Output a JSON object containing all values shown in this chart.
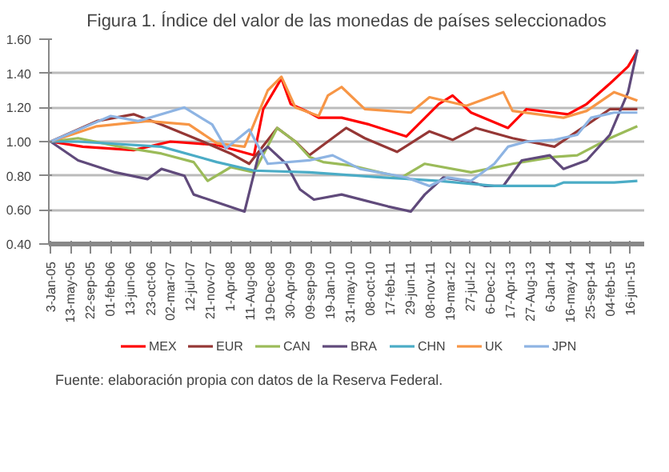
{
  "chart_data": {
    "type": "line",
    "title": "Figura 1. Índice del valor de las monedas de países seleccionados",
    "annotations": [
      "Fuente: elaboración propia con datos de la Reserva Federal."
    ],
    "xlim": [
      "2004-12-20",
      "2015-09-15"
    ],
    "xticks": [
      {
        "value": "2005-01-03",
        "label": "3-Jan-05"
      },
      {
        "value": "2005-05-13",
        "label": "13-may-05"
      },
      {
        "value": "2005-09-22",
        "label": "22-sep-05"
      },
      {
        "value": "2006-02-01",
        "label": "01-feb-06"
      },
      {
        "value": "2006-06-13",
        "label": "13-jun-06"
      },
      {
        "value": "2006-10-23",
        "label": "23-oct-06"
      },
      {
        "value": "2007-03-02",
        "label": "02-mar-07"
      },
      {
        "value": "2007-07-12",
        "label": "12-jul-07"
      },
      {
        "value": "2007-11-21",
        "label": "21-nov-07"
      },
      {
        "value": "2008-04-01",
        "label": "1-Apr-08"
      },
      {
        "value": "2008-08-11",
        "label": "11-Aug-08"
      },
      {
        "value": "2008-12-19",
        "label": "19-Dec-08"
      },
      {
        "value": "2009-04-30",
        "label": "30-Apr-09"
      },
      {
        "value": "2009-09-09",
        "label": "09-sep-09"
      },
      {
        "value": "2010-01-19",
        "label": "19-Jan-10"
      },
      {
        "value": "2010-05-31",
        "label": "31-may-10"
      },
      {
        "value": "2010-10-08",
        "label": "08-oct-10"
      },
      {
        "value": "2011-02-17",
        "label": "17-feb-11"
      },
      {
        "value": "2011-06-29",
        "label": "29-jun-11"
      },
      {
        "value": "2011-11-08",
        "label": "08-nov-11"
      },
      {
        "value": "2012-03-19",
        "label": "19-mar-12"
      },
      {
        "value": "2012-07-27",
        "label": "27-jul-12"
      },
      {
        "value": "2012-12-06",
        "label": "6-Dec-12"
      },
      {
        "value": "2013-04-17",
        "label": "17-Apr-13"
      },
      {
        "value": "2013-08-27",
        "label": "27-Aug-13"
      },
      {
        "value": "2014-01-06",
        "label": "6-Jan-14"
      },
      {
        "value": "2014-05-16",
        "label": "16-may-14"
      },
      {
        "value": "2014-09-25",
        "label": "25-sep-14"
      },
      {
        "value": "2015-02-04",
        "label": "04-feb-15"
      },
      {
        "value": "2015-06-16",
        "label": "16-jun-15"
      }
    ],
    "ylim": [
      0.4,
      1.6
    ],
    "yticks": [
      {
        "value": 0.4,
        "label": "0.40"
      },
      {
        "value": 0.6,
        "label": "0.60"
      },
      {
        "value": 0.8,
        "label": "0.80"
      },
      {
        "value": 1.0,
        "label": "1.00"
      },
      {
        "value": 1.2,
        "label": "1.20"
      },
      {
        "value": 1.4,
        "label": "1.40"
      },
      {
        "value": 1.6,
        "label": "1.60"
      }
    ],
    "grid": "y",
    "legend": "bottom",
    "series": [
      {
        "name": "MEX",
        "color": "#ff0000",
        "x": [
          "2005-01",
          "2005-08",
          "2006-07",
          "2007-03",
          "2008-01",
          "2008-09",
          "2008-11",
          "2009-03",
          "2009-05",
          "2009-09",
          "2009-11",
          "2010-04",
          "2010-10",
          "2011-06",
          "2012-01",
          "2012-04",
          "2012-08",
          "2013-04",
          "2013-08",
          "2014-05",
          "2014-09",
          "2015-02",
          "2015-06",
          "2015-08"
        ],
        "values": [
          1.0,
          0.97,
          0.95,
          1.0,
          0.98,
          0.92,
          1.19,
          1.37,
          1.22,
          1.17,
          1.14,
          1.14,
          1.1,
          1.03,
          1.22,
          1.27,
          1.17,
          1.08,
          1.19,
          1.16,
          1.22,
          1.34,
          1.44,
          1.53
        ]
      },
      {
        "name": "EUR",
        "color": "#953735",
        "x": [
          "2005-01",
          "2005-11",
          "2006-07",
          "2007-01",
          "2007-10",
          "2008-04",
          "2008-08",
          "2009-02",
          "2009-06",
          "2009-09",
          "2010-05",
          "2010-09",
          "2011-04",
          "2011-11",
          "2012-04",
          "2012-09",
          "2013-05",
          "2014-02",
          "2014-07",
          "2015-02",
          "2015-08"
        ],
        "values": [
          1.0,
          1.12,
          1.16,
          1.1,
          1.0,
          0.93,
          0.87,
          1.08,
          1.0,
          0.92,
          1.08,
          1.02,
          0.94,
          1.06,
          1.01,
          1.08,
          1.02,
          0.97,
          1.06,
          1.19,
          1.19
        ]
      },
      {
        "name": "CAN",
        "color": "#9bbb59",
        "x": [
          "2005-01",
          "2005-07",
          "2006-04",
          "2007-01",
          "2007-08",
          "2007-11",
          "2008-04",
          "2008-09",
          "2009-02",
          "2009-06",
          "2009-09",
          "2009-12",
          "2010-06",
          "2011-05",
          "2011-10",
          "2012-08",
          "2013-05",
          "2014-02",
          "2014-07",
          "2015-02",
          "2015-08"
        ],
        "values": [
          1.0,
          1.02,
          0.97,
          0.93,
          0.88,
          0.77,
          0.85,
          0.82,
          1.08,
          1.0,
          0.91,
          0.88,
          0.86,
          0.79,
          0.87,
          0.82,
          0.87,
          0.91,
          0.92,
          1.02,
          1.09
        ]
      },
      {
        "name": "BRA",
        "color": "#604a7b",
        "x": [
          "2005-01",
          "2005-07",
          "2006-03",
          "2006-10",
          "2007-01",
          "2007-06",
          "2007-08",
          "2008-07",
          "2008-10",
          "2008-12",
          "2009-04",
          "2009-07",
          "2009-10",
          "2010-04",
          "2011-02",
          "2011-07",
          "2011-10",
          "2012-02",
          "2012-07",
          "2012-11",
          "2013-03",
          "2013-07",
          "2014-01",
          "2014-04",
          "2014-09",
          "2015-02",
          "2015-06",
          "2015-08"
        ],
        "values": [
          1.0,
          0.89,
          0.82,
          0.78,
          0.84,
          0.8,
          0.69,
          0.59,
          0.92,
          0.97,
          0.87,
          0.72,
          0.66,
          0.69,
          0.62,
          0.59,
          0.69,
          0.79,
          0.77,
          0.74,
          0.74,
          0.89,
          0.92,
          0.84,
          0.89,
          1.04,
          1.29,
          1.54
        ]
      },
      {
        "name": "CHN",
        "color": "#4bacc6",
        "x": [
          "2005-01",
          "2005-07",
          "2007-01",
          "2008-01",
          "2008-09",
          "2009-09",
          "2011-01",
          "2012-01",
          "2013-01",
          "2014-02",
          "2014-04",
          "2015-03",
          "2015-08"
        ],
        "values": [
          1.0,
          1.0,
          0.97,
          0.88,
          0.83,
          0.82,
          0.79,
          0.77,
          0.74,
          0.74,
          0.76,
          0.76,
          0.77
        ]
      },
      {
        "name": "UK",
        "color": "#f79646",
        "x": [
          "2005-01",
          "2005-11",
          "2006-10",
          "2007-07",
          "2008-01",
          "2008-07",
          "2008-12",
          "2009-03",
          "2009-06",
          "2009-11",
          "2010-01",
          "2010-04",
          "2010-09",
          "2011-07",
          "2011-11",
          "2012-07",
          "2013-03",
          "2013-05",
          "2014-04",
          "2014-09",
          "2015-03",
          "2015-08"
        ],
        "values": [
          1.0,
          1.09,
          1.12,
          1.1,
          0.99,
          0.97,
          1.3,
          1.38,
          1.2,
          1.15,
          1.27,
          1.32,
          1.19,
          1.17,
          1.26,
          1.21,
          1.29,
          1.18,
          1.14,
          1.18,
          1.29,
          1.24
        ]
      },
      {
        "name": "JPN",
        "color": "#8eb4e3",
        "x": [
          "2005-01",
          "2006-02",
          "2006-08",
          "2007-06",
          "2007-12",
          "2008-03",
          "2008-08",
          "2008-12",
          "2009-09",
          "2010-02",
          "2010-08",
          "2011-06",
          "2011-11",
          "2012-03",
          "2012-08",
          "2013-01",
          "2013-04",
          "2013-08",
          "2014-02",
          "2014-07",
          "2014-10",
          "2015-03",
          "2015-08"
        ],
        "values": [
          1.0,
          1.15,
          1.12,
          1.2,
          1.1,
          0.96,
          1.07,
          0.87,
          0.89,
          0.92,
          0.84,
          0.79,
          0.74,
          0.79,
          0.77,
          0.87,
          0.97,
          1.0,
          1.01,
          1.04,
          1.14,
          1.17,
          1.17
        ]
      }
    ]
  }
}
